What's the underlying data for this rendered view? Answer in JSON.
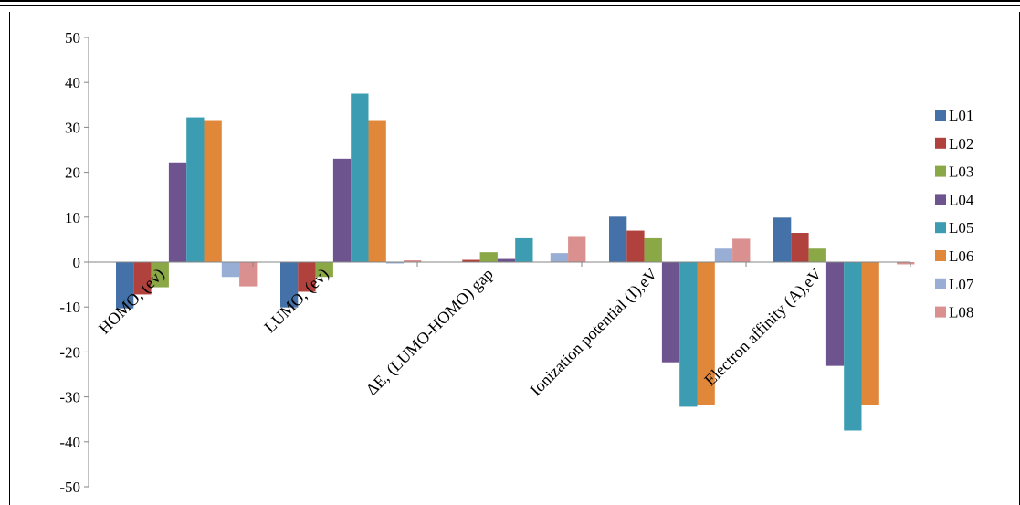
{
  "chart_data": {
    "type": "bar",
    "title": "",
    "xlabel": "",
    "ylabel": "",
    "ylim": [
      -50,
      50
    ],
    "yticks": [
      50,
      40,
      30,
      20,
      10,
      0,
      -10,
      -20,
      -30,
      -40,
      -50
    ],
    "grid": false,
    "legend_position": "right",
    "categories": [
      "HOMO, (ev)",
      "LUMO, (ev)",
      "ΔE, (LUMO-HOMO) gap",
      "Ionization potential (I),eV",
      "Electron affinity (A),eV"
    ],
    "series": [
      {
        "name": "L01",
        "color": "#4472A8",
        "values": [
          -10.3,
          -10.1,
          0.0,
          10.1,
          9.9
        ]
      },
      {
        "name": "L02",
        "color": "#B0413C",
        "values": [
          -7.2,
          -6.6,
          0.5,
          7.0,
          6.5
        ]
      },
      {
        "name": "L03",
        "color": "#8AA845",
        "values": [
          -5.6,
          -3.3,
          2.2,
          5.3,
          3.0
        ]
      },
      {
        "name": "L04",
        "color": "#6E548F",
        "values": [
          22.2,
          23.0,
          0.7,
          -22.3,
          -23.1
        ]
      },
      {
        "name": "L05",
        "color": "#3C9CB2",
        "values": [
          32.2,
          37.5,
          5.3,
          -32.2,
          -37.5
        ]
      },
      {
        "name": "L06",
        "color": "#E1873A",
        "values": [
          31.6,
          31.6,
          0.0,
          -31.8,
          -31.8
        ]
      },
      {
        "name": "L07",
        "color": "#98AED4",
        "values": [
          -3.3,
          -0.3,
          2.0,
          3.0,
          0.0
        ]
      },
      {
        "name": "L08",
        "color": "#D9908E",
        "values": [
          -5.4,
          0.4,
          5.8,
          5.2,
          -0.5
        ]
      }
    ]
  }
}
